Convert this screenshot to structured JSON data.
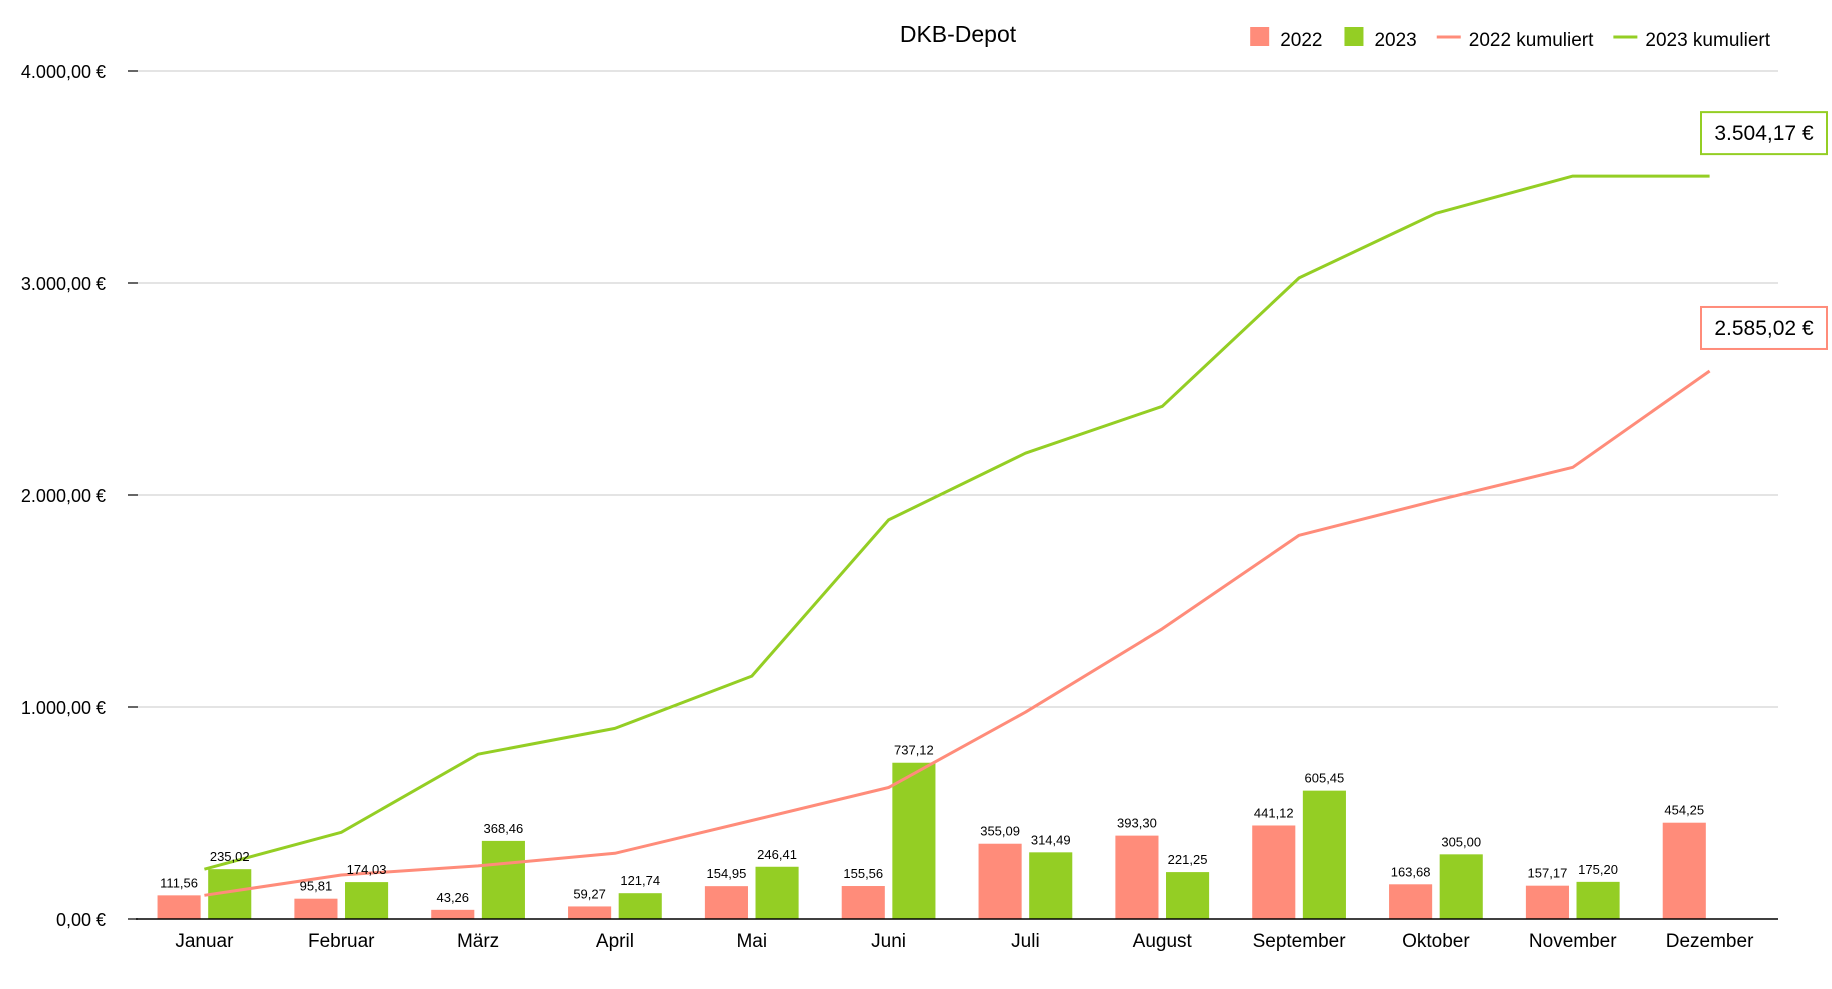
{
  "chart_data": {
    "type": "bar",
    "title": "DKB-Depot",
    "xlabel": "",
    "ylabel": "",
    "ylim": [
      0,
      4000
    ],
    "grid": true,
    "legend_position": "top-right",
    "y_ticks": [
      {
        "value": 0,
        "label": "0,00 €"
      },
      {
        "value": 1000,
        "label": "1.000,00 €"
      },
      {
        "value": 2000,
        "label": "2.000,00 €"
      },
      {
        "value": 3000,
        "label": "3.000,00 €"
      },
      {
        "value": 4000,
        "label": "4.000,00 €"
      }
    ],
    "categories": [
      "Januar",
      "Februar",
      "März",
      "April",
      "Mai",
      "Juni",
      "Juli",
      "August",
      "September",
      "Oktober",
      "November",
      "Dezember"
    ],
    "series": [
      {
        "name": "2022",
        "kind": "bar",
        "color": "#FF8C7A",
        "values": [
          111.56,
          95.81,
          43.26,
          59.27,
          154.95,
          155.56,
          355.09,
          393.3,
          441.12,
          163.68,
          157.17,
          454.25
        ],
        "labels": [
          "111,56",
          "95,81",
          "43,26",
          "59,27",
          "154,95",
          "155,56",
          "355,09",
          "393,30",
          "441,12",
          "163,68",
          "157,17",
          "454,25"
        ]
      },
      {
        "name": "2023",
        "kind": "bar",
        "color": "#94CE24",
        "values": [
          235.02,
          174.03,
          368.46,
          121.74,
          246.41,
          737.12,
          314.49,
          221.25,
          605.45,
          305.0,
          175.2,
          null
        ],
        "labels": [
          "235,02",
          "174,03",
          "368,46",
          "121,74",
          "246,41",
          "737,12",
          "314,49",
          "221,25",
          "605,45",
          "305,00",
          "175,20",
          null
        ]
      },
      {
        "name": "2022 kumuliert",
        "kind": "line",
        "color": "#FF8C7A",
        "values": [
          111.56,
          207.37,
          250.63,
          309.9,
          464.85,
          620.41,
          975.5,
          1368.8,
          1809.92,
          1973.6,
          2130.77,
          2585.02
        ]
      },
      {
        "name": "2023 kumuliert",
        "kind": "line",
        "color": "#94CE24",
        "values": [
          235.02,
          409.05,
          777.51,
          899.25,
          1145.66,
          1882.78,
          2197.27,
          2418.52,
          3023.97,
          3328.97,
          3504.17,
          3504.17
        ]
      }
    ],
    "annotations": [
      {
        "series": "2023 kumuliert",
        "text": "3.504,17 €"
      },
      {
        "series": "2022 kumuliert",
        "text": "2.585,02 €"
      }
    ]
  }
}
